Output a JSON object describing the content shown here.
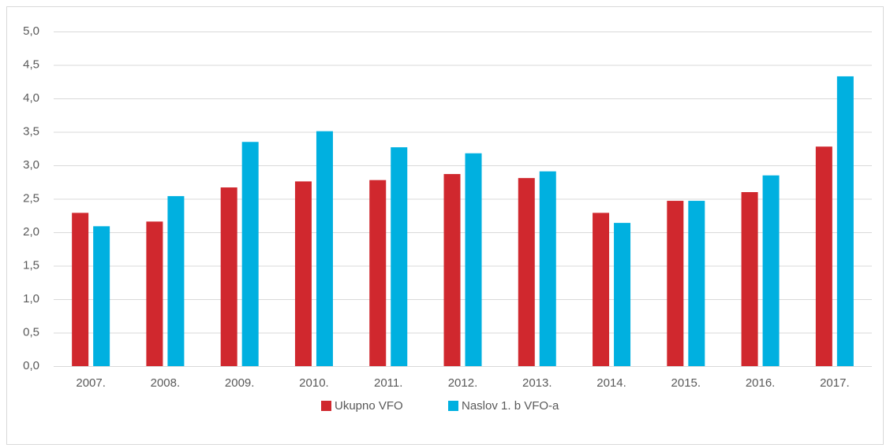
{
  "chart_data": {
    "type": "bar",
    "categories": [
      "2007.",
      "2008.",
      "2009.",
      "2010.",
      "2011.",
      "2012.",
      "2013.",
      "2014.",
      "2015.",
      "2016.",
      "2017."
    ],
    "series": [
      {
        "name": "Ukupno VFO",
        "color": "#d0282e",
        "values": [
          2.29,
          2.16,
          2.67,
          2.76,
          2.78,
          2.87,
          2.81,
          2.29,
          2.47,
          2.6,
          3.28
        ]
      },
      {
        "name": "Naslov 1. b VFO-a",
        "color": "#00b0e0",
        "values": [
          2.09,
          2.54,
          3.35,
          3.51,
          3.27,
          3.18,
          2.91,
          2.14,
          2.47,
          2.85,
          4.33
        ]
      }
    ],
    "ylim": [
      0,
      5
    ],
    "yticks": [
      {
        "value": 0,
        "label": "0,0"
      },
      {
        "value": 0.5,
        "label": "0,5"
      },
      {
        "value": 1,
        "label": "1,0"
      },
      {
        "value": 1.5,
        "label": "1,5"
      },
      {
        "value": 2,
        "label": "2,0"
      },
      {
        "value": 2.5,
        "label": "2,5"
      },
      {
        "value": 3,
        "label": "3,0"
      },
      {
        "value": 3.5,
        "label": "3,5"
      },
      {
        "value": 4,
        "label": "4,0"
      },
      {
        "value": 4.5,
        "label": "4,5"
      },
      {
        "value": 5,
        "label": "5,0"
      }
    ],
    "grid": true,
    "legend": "bottom"
  }
}
